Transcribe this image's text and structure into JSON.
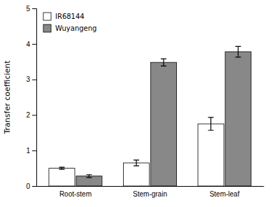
{
  "chart_data": {
    "type": "bar",
    "categories": [
      "Root-stem",
      "Stem-grain",
      "Stem-leaf"
    ],
    "series": [
      {
        "name": "IR68144",
        "color": "#ffffff",
        "values": [
          0.5,
          0.65,
          1.75
        ],
        "errors": [
          0.03,
          0.08,
          0.18
        ]
      },
      {
        "name": "Wuyangeng",
        "color": "#888888",
        "values": [
          0.28,
          3.48,
          3.78
        ],
        "errors": [
          0.04,
          0.1,
          0.15
        ]
      }
    ],
    "ylabel": "Transfer coefficient",
    "ylim": [
      0,
      5
    ],
    "yticks": [
      0,
      1,
      2,
      3,
      4,
      5
    ],
    "grid": false,
    "legend": "upper-left"
  }
}
